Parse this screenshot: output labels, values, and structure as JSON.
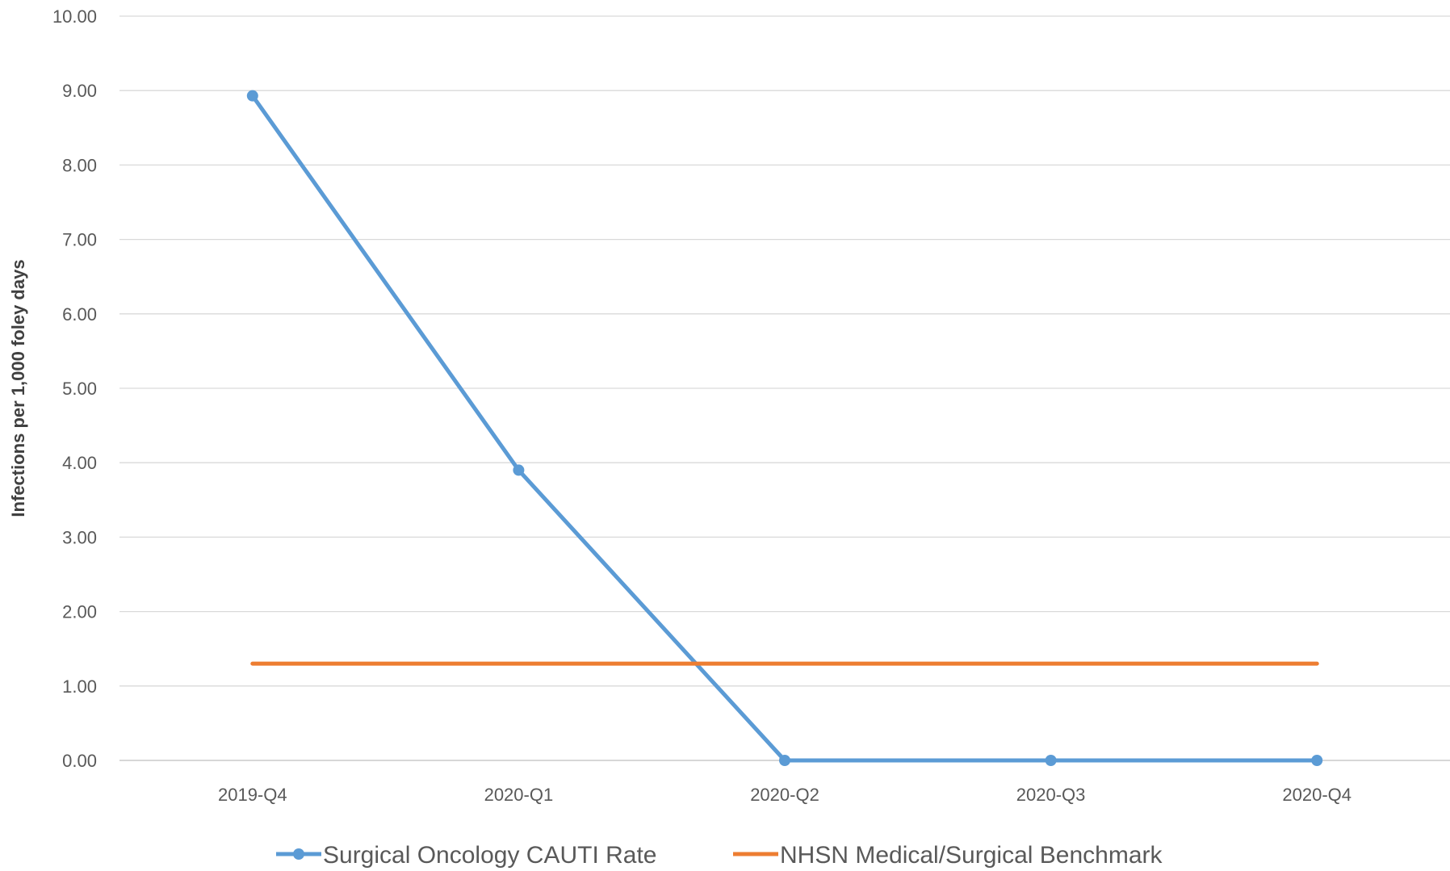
{
  "chart_data": {
    "type": "line",
    "title": "",
    "xlabel": "",
    "ylabel": "Infections per 1,000 foley days",
    "categories": [
      "2019-Q4",
      "2020-Q1",
      "2020-Q2",
      "2020-Q3",
      "2020-Q4"
    ],
    "ylim": [
      0,
      10
    ],
    "y_ticks": [
      "0.00",
      "1.00",
      "2.00",
      "3.00",
      "4.00",
      "5.00",
      "6.00",
      "7.00",
      "8.00",
      "9.00",
      "10.00"
    ],
    "grid": "horizontal",
    "legend_position": "bottom",
    "series": [
      {
        "name": "Surgical Oncology CAUTI Rate",
        "values": [
          8.93,
          3.9,
          0.0,
          0.0,
          0.0
        ],
        "color": "#5B9BD5",
        "markers": true
      },
      {
        "name": "NHSN Medical/Surgical Benchmark",
        "values": [
          1.3,
          1.3,
          1.3,
          1.3,
          1.3
        ],
        "color": "#ED7D31",
        "markers": false
      }
    ]
  }
}
